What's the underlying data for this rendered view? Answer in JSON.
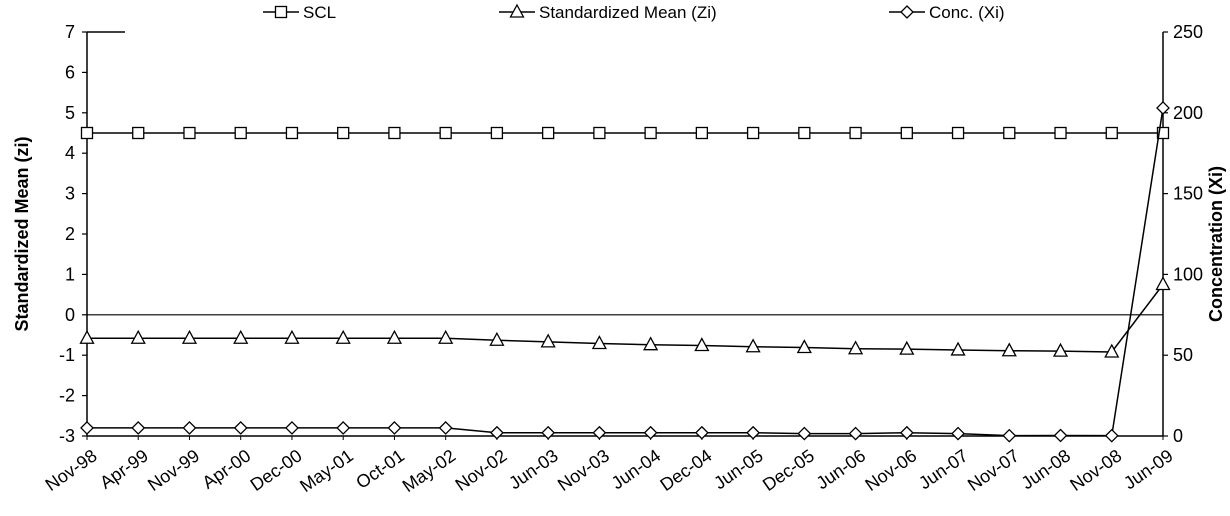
{
  "chart_data": {
    "type": "line",
    "categories": [
      "Nov-98",
      "Apr-99",
      "Nov-99",
      "Apr-00",
      "Dec-00",
      "May-01",
      "Oct-01",
      "May-02",
      "Nov-02",
      "Jun-03",
      "Nov-03",
      "Jun-04",
      "Dec-04",
      "Jun-05",
      "Dec-05",
      "Jun-06",
      "Nov-06",
      "Jun-07",
      "Nov-07",
      "Jun-08",
      "Nov-08",
      "Jun-09"
    ],
    "y_left": {
      "label": "Standardized Mean (zi)",
      "range": [
        -3,
        7
      ],
      "ticks": [
        "-3",
        "-2",
        "-1",
        "0",
        "1",
        "2",
        "3",
        "4",
        "5",
        "6",
        "7"
      ]
    },
    "y_right": {
      "label": "Concentration (Xi)",
      "range": [
        0,
        250
      ],
      "ticks": [
        "0",
        "50",
        "100",
        "150",
        "200",
        "250"
      ]
    },
    "legend_position": "top",
    "grid": false,
    "series": [
      {
        "name": "SCL",
        "axis": "left",
        "marker": "square",
        "values": [
          4.5,
          4.5,
          4.5,
          4.5,
          4.5,
          4.5,
          4.5,
          4.5,
          4.5,
          4.5,
          4.5,
          4.5,
          4.5,
          4.5,
          4.5,
          4.5,
          4.5,
          4.5,
          4.5,
          4.5,
          4.5,
          4.5
        ]
      },
      {
        "name": "Standardized Mean (Zi)",
        "axis": "left",
        "marker": "triangle",
        "values": [
          -0.58,
          -0.58,
          -0.58,
          -0.58,
          -0.58,
          -0.58,
          -0.58,
          -0.58,
          -0.63,
          -0.67,
          -0.71,
          -0.74,
          -0.76,
          -0.79,
          -0.81,
          -0.84,
          -0.85,
          -0.87,
          -0.89,
          -0.9,
          -0.92,
          0.75
        ]
      },
      {
        "name": "Conc. (Xi)",
        "axis": "right",
        "marker": "diamond",
        "values": [
          5,
          5,
          5,
          5,
          5,
          5,
          5,
          5,
          2,
          2,
          2,
          2,
          2,
          2,
          1.5,
          1.5,
          2,
          1.5,
          0.2,
          0.3,
          0.2,
          203
        ]
      }
    ]
  }
}
